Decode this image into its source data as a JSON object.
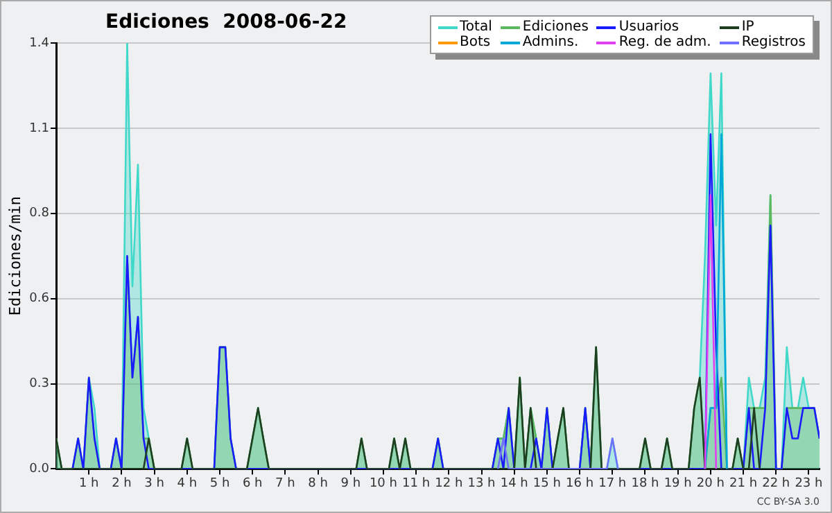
{
  "chart_data": {
    "type": "line",
    "title": "Ediciones  2008-06-22",
    "ylabel": "Ediciones/min",
    "annotations": [
      "CC BY-SA 3.0"
    ],
    "xlim": [
      0,
      23.33
    ],
    "xticks": [
      {
        "value": 1,
        "label": "1 h"
      },
      {
        "value": 2,
        "label": "2 h"
      },
      {
        "value": 3,
        "label": "3 h"
      },
      {
        "value": 4,
        "label": "4 h"
      },
      {
        "value": 5,
        "label": "5 h"
      },
      {
        "value": 6,
        "label": "6 h"
      },
      {
        "value": 7,
        "label": "7 h"
      },
      {
        "value": 8,
        "label": "8 h"
      },
      {
        "value": 9,
        "label": "9 h"
      },
      {
        "value": 10,
        "label": "10 h"
      },
      {
        "value": 11,
        "label": "11 h"
      },
      {
        "value": 12,
        "label": "12 h"
      },
      {
        "value": 13,
        "label": "13 h"
      },
      {
        "value": 14,
        "label": "14 h"
      },
      {
        "value": 15,
        "label": "15 h"
      },
      {
        "value": 16,
        "label": "16 h"
      },
      {
        "value": 17,
        "label": "17 h"
      },
      {
        "value": 18,
        "label": "18 h"
      },
      {
        "value": 19,
        "label": "19 h"
      },
      {
        "value": 20,
        "label": "20 h"
      },
      {
        "value": 21,
        "label": "21 h"
      },
      {
        "value": 22,
        "label": "22 h"
      },
      {
        "value": 23,
        "label": "23 h"
      }
    ],
    "ylim": [
      0,
      1.4
    ],
    "yticks": [
      {
        "value": 0,
        "label": "0.0"
      },
      {
        "value": 0.28,
        "label": "0.3"
      },
      {
        "value": 0.56,
        "label": "0.6"
      },
      {
        "value": 0.84,
        "label": "0.8"
      },
      {
        "value": 1.12,
        "label": "1.1"
      },
      {
        "value": 1.4,
        "label": "1.4"
      }
    ],
    "grid": "y",
    "legend": "top right",
    "marker": "none",
    "series": [
      {
        "name": "Total",
        "type": "area",
        "color": "#40d8c8",
        "x": [
          0,
          0.17,
          0.5,
          0.67,
          0.83,
          1,
          1.17,
          1.33,
          1.67,
          1.83,
          2,
          2.17,
          2.33,
          2.5,
          2.67,
          2.83,
          3,
          3.83,
          4,
          4.17,
          4.83,
          5,
          5.17,
          5.33,
          5.5,
          5.83,
          6,
          6.17,
          6.33,
          6.5,
          9.17,
          9.33,
          9.5,
          10.17,
          10.33,
          10.5,
          10.67,
          10.83,
          11.5,
          11.67,
          11.83,
          13.33,
          13.5,
          13.67,
          13.83,
          14,
          14.17,
          14.33,
          14.5,
          14.67,
          14.83,
          15,
          15.17,
          15.33,
          15.5,
          15.67,
          16,
          16.17,
          16.33,
          16.5,
          16.67,
          16.83,
          17,
          17.17,
          17.83,
          18,
          18.17,
          18.5,
          18.67,
          18.83,
          19.33,
          19.5,
          19.67,
          19.83,
          20,
          20.17,
          20.33,
          20.5,
          20.67,
          20.83,
          21,
          21.17,
          21.33,
          21.5,
          21.67,
          21.83,
          22,
          22.17,
          22.33,
          22.5,
          22.67,
          22.83,
          23,
          23.17,
          23.33
        ],
        "values": [
          0.1,
          0,
          0,
          0.1,
          0,
          0.3,
          0.2,
          0,
          0,
          0.1,
          0,
          1.4,
          0.6,
          1,
          0.2,
          0.1,
          0,
          0,
          0.1,
          0,
          0,
          0.4,
          0.4,
          0.1,
          0,
          0,
          0.1,
          0.2,
          0.1,
          0,
          0,
          0.1,
          0,
          0,
          0.1,
          0,
          0.1,
          0,
          0,
          0.1,
          0,
          0,
          0.1,
          0.1,
          0.2,
          0,
          0.3,
          0,
          0.2,
          0.1,
          0,
          0.2,
          0,
          0.1,
          0.2,
          0,
          0,
          0.2,
          0,
          0.4,
          0,
          0,
          0.1,
          0,
          0,
          0.1,
          0,
          0,
          0.1,
          0,
          0,
          0.2,
          0.3,
          0.7,
          1.3,
          0.8,
          1.3,
          0,
          0,
          0.1,
          0,
          0.3,
          0.2,
          0.2,
          0.3,
          0.9,
          0,
          0,
          0.4,
          0.2,
          0.2,
          0.3,
          0.2,
          0.2,
          0.1
        ]
      },
      {
        "name": "Ediciones",
        "type": "area",
        "color": "#5cb85c",
        "x": [
          0,
          0.17,
          0.5,
          0.67,
          0.83,
          1,
          1.17,
          1.33,
          1.67,
          1.83,
          2,
          2.17,
          2.33,
          2.5,
          2.67,
          2.83,
          3,
          3.83,
          4,
          4.17,
          4.83,
          5,
          5.17,
          5.33,
          5.5,
          5.83,
          6,
          6.17,
          6.33,
          6.5,
          9.17,
          9.33,
          9.5,
          10.17,
          10.33,
          10.5,
          10.67,
          10.83,
          11.5,
          11.67,
          11.83,
          13.33,
          13.5,
          13.67,
          13.83,
          14,
          14.17,
          14.33,
          14.5,
          14.67,
          14.83,
          15,
          15.17,
          15.33,
          15.5,
          15.67,
          16,
          16.17,
          16.33,
          16.5,
          16.67,
          17.83,
          18,
          18.17,
          18.5,
          18.67,
          18.83,
          19.33,
          19.5,
          19.67,
          19.83,
          20,
          20.17,
          20.33,
          20.5,
          20.67,
          20.83,
          21,
          21.17,
          21.33,
          21.5,
          21.67,
          21.83,
          22,
          22.17,
          22.33,
          22.5,
          22.67,
          22.83,
          23,
          23.17,
          23.33
        ],
        "values": [
          0.1,
          0,
          0,
          0.1,
          0,
          0.3,
          0.1,
          0,
          0,
          0.1,
          0,
          0.7,
          0.3,
          0.5,
          0.1,
          0.1,
          0,
          0,
          0.1,
          0,
          0,
          0.4,
          0.4,
          0.1,
          0,
          0,
          0.1,
          0.2,
          0.1,
          0,
          0,
          0.1,
          0,
          0,
          0.1,
          0,
          0.1,
          0,
          0,
          0.1,
          0,
          0,
          0.1,
          0.1,
          0.2,
          0,
          0.3,
          0,
          0.2,
          0.1,
          0,
          0.2,
          0,
          0.1,
          0.2,
          0,
          0,
          0.2,
          0,
          0.4,
          0,
          0,
          0.1,
          0,
          0,
          0.1,
          0,
          0,
          0.2,
          0.3,
          0,
          0.2,
          0.2,
          0.3,
          0,
          0,
          0.1,
          0,
          0.2,
          0.2,
          0.2,
          0.2,
          0.9,
          0,
          0,
          0.2,
          0.2,
          0.2,
          0.2,
          0.2,
          0.2,
          0.1
        ]
      },
      {
        "name": "Usuarios",
        "color": "#1a1aff",
        "x": [
          0.5,
          0.67,
          0.83,
          1,
          1.17,
          1.33,
          1.67,
          1.83,
          2,
          2.17,
          2.33,
          2.5,
          2.67,
          2.83,
          4.83,
          5,
          5.17,
          5.33,
          5.5,
          11.5,
          11.67,
          11.83,
          13.33,
          13.5,
          13.67,
          13.83,
          14,
          14.5,
          14.67,
          14.83,
          15,
          15.17,
          16,
          16.17,
          16.33,
          19.83,
          20,
          20.17,
          20.33,
          21,
          21.17,
          21.33,
          21.5,
          21.67,
          21.83,
          22,
          22.17,
          22.33,
          22.5,
          22.67,
          22.83,
          23,
          23.17,
          23.33
        ],
        "values": [
          0,
          0.1,
          0,
          0.3,
          0.1,
          0,
          0,
          0.1,
          0,
          0.7,
          0.3,
          0.5,
          0.1,
          0,
          0,
          0.4,
          0.4,
          0.1,
          0,
          0,
          0.1,
          0,
          0,
          0.1,
          0,
          0.2,
          0,
          0,
          0.1,
          0,
          0.2,
          0,
          0,
          0.2,
          0,
          0,
          1.1,
          0.4,
          0,
          0,
          0.2,
          0,
          0,
          0.2,
          0.8,
          0,
          0,
          0.2,
          0.1,
          0.1,
          0.2,
          0.2,
          0.2,
          0.1
        ]
      },
      {
        "name": "IP",
        "color": "#1f3d1f",
        "x": [
          0,
          0.17,
          2.67,
          2.83,
          3,
          3.83,
          4,
          4.17,
          5.83,
          6,
          6.17,
          6.33,
          6.5,
          9.17,
          9.33,
          9.5,
          10.17,
          10.33,
          10.5,
          10.67,
          10.83,
          14,
          14.17,
          14.33,
          14.5,
          14.67,
          15.17,
          15.33,
          15.5,
          15.67,
          16.33,
          16.5,
          16.67,
          17.83,
          18,
          18.17,
          18.5,
          18.67,
          18.83,
          19.33,
          19.5,
          19.67,
          19.83,
          20.67,
          20.83,
          21,
          21.17,
          21.33,
          21.5
        ],
        "values": [
          0.1,
          0,
          0,
          0.1,
          0,
          0,
          0.1,
          0,
          0,
          0.1,
          0.2,
          0.1,
          0,
          0,
          0.1,
          0,
          0,
          0.1,
          0,
          0.1,
          0,
          0,
          0.3,
          0,
          0.2,
          0,
          0,
          0.1,
          0.2,
          0,
          0,
          0.4,
          0,
          0,
          0.1,
          0,
          0,
          0.1,
          0,
          0,
          0.2,
          0.3,
          0,
          0,
          0.1,
          0,
          0,
          0.2,
          0
        ]
      },
      {
        "name": "Bots",
        "color": "#ff9900"
      },
      {
        "name": "Admins.",
        "color": "#00a8d8",
        "x": [
          19.83,
          20,
          20.17,
          20.33,
          20.5
        ],
        "values": [
          0,
          0.2,
          0.2,
          1.1,
          0
        ]
      },
      {
        "name": "Reg. de adm.",
        "color": "#e040f0",
        "x": [
          19.83,
          20,
          20.17
        ],
        "values": [
          0,
          0.9,
          0
        ]
      },
      {
        "name": "Registros",
        "color": "#7070ff",
        "x": [
          13.5,
          13.67,
          13.83,
          16.83,
          17,
          17.17
        ],
        "values": [
          0,
          0.1,
          0,
          0,
          0.1,
          0
        ]
      }
    ]
  }
}
